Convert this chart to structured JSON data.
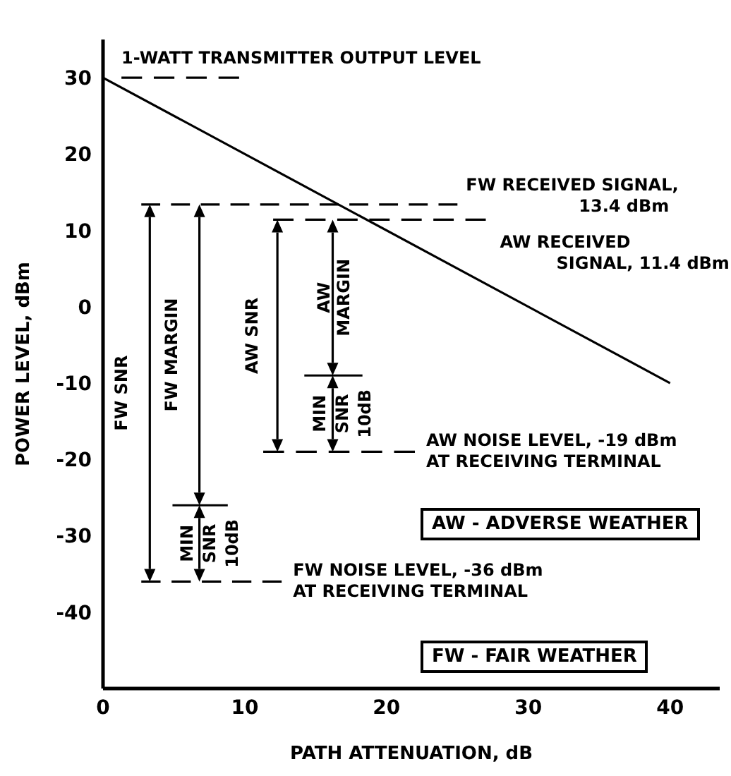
{
  "chart_data": {
    "type": "line",
    "xlabel": "PATH ATTENUATION, dB",
    "ylabel": "POWER LEVEL, dBm",
    "xlim": [
      0,
      43.5
    ],
    "ylim": [
      -50,
      35
    ],
    "xticks": [
      0,
      10,
      20,
      30,
      40
    ],
    "yticks": [
      -40,
      -30,
      -20,
      -10,
      0,
      10,
      20,
      30
    ],
    "series": [
      {
        "color": "#000000",
        "x": [
          0,
          40
        ],
        "values": [
          30,
          -10
        ],
        "line_style": "solid",
        "marker": "none"
      },
      {
        "color": "#000000",
        "x": [
          1.3,
          9.6
        ],
        "values": [
          30,
          30
        ],
        "line_style": "dashed",
        "marker": "none"
      },
      {
        "color": "#000000",
        "x": [
          2.7,
          25
        ],
        "values": [
          13.4,
          13.4
        ],
        "line_style": "dashed",
        "marker": "none"
      },
      {
        "color": "#000000",
        "x": [
          12,
          27
        ],
        "values": [
          11.4,
          11.4
        ],
        "line_style": "dashed",
        "marker": "none"
      },
      {
        "color": "#000000",
        "x": [
          11.3,
          22
        ],
        "values": [
          -19,
          -19
        ],
        "line_style": "dashed",
        "marker": "none"
      },
      {
        "color": "#000000",
        "x": [
          2.7,
          12.6
        ],
        "values": [
          -36,
          -36
        ],
        "line_style": "dashed",
        "marker": "none"
      },
      {
        "color": "#000000",
        "x": [
          4.9,
          8.8
        ],
        "values": [
          -26,
          -26
        ],
        "line_style": "solid",
        "marker": "none"
      },
      {
        "color": "#000000",
        "x": [
          14.2,
          18.3
        ],
        "values": [
          -9,
          -9
        ],
        "line_style": "solid",
        "marker": "none"
      }
    ],
    "annotations": [
      {
        "text": "1-WATT TRANSMITTER OUTPUT LEVEL",
        "x": 1.3,
        "y": 30
      },
      {
        "text": "FW RECEIVED SIGNAL,\n13.4 dBm",
        "x": 25,
        "y": 13.4
      },
      {
        "text": "AW RECEIVED\nSIGNAL, 11.4 dBm",
        "x": 27,
        "y": 11.4
      },
      {
        "text": "AW NOISE LEVEL, -19 dBm\nAT RECEIVING TERMINAL",
        "x": 22,
        "y": -19
      },
      {
        "text": "FW NOISE LEVEL, -36 dBm\nAT RECEIVING TERMINAL",
        "x": 12.6,
        "y": -36
      },
      "FW SNR",
      "FW MARGIN",
      "MIN\nSNR\n10dB",
      "AW SNR",
      "AW\nMARGIN",
      "MIN\nSNR\n10dB",
      "AW - ADVERSE WEATHER",
      "FW - FAIR WEATHER"
    ]
  }
}
